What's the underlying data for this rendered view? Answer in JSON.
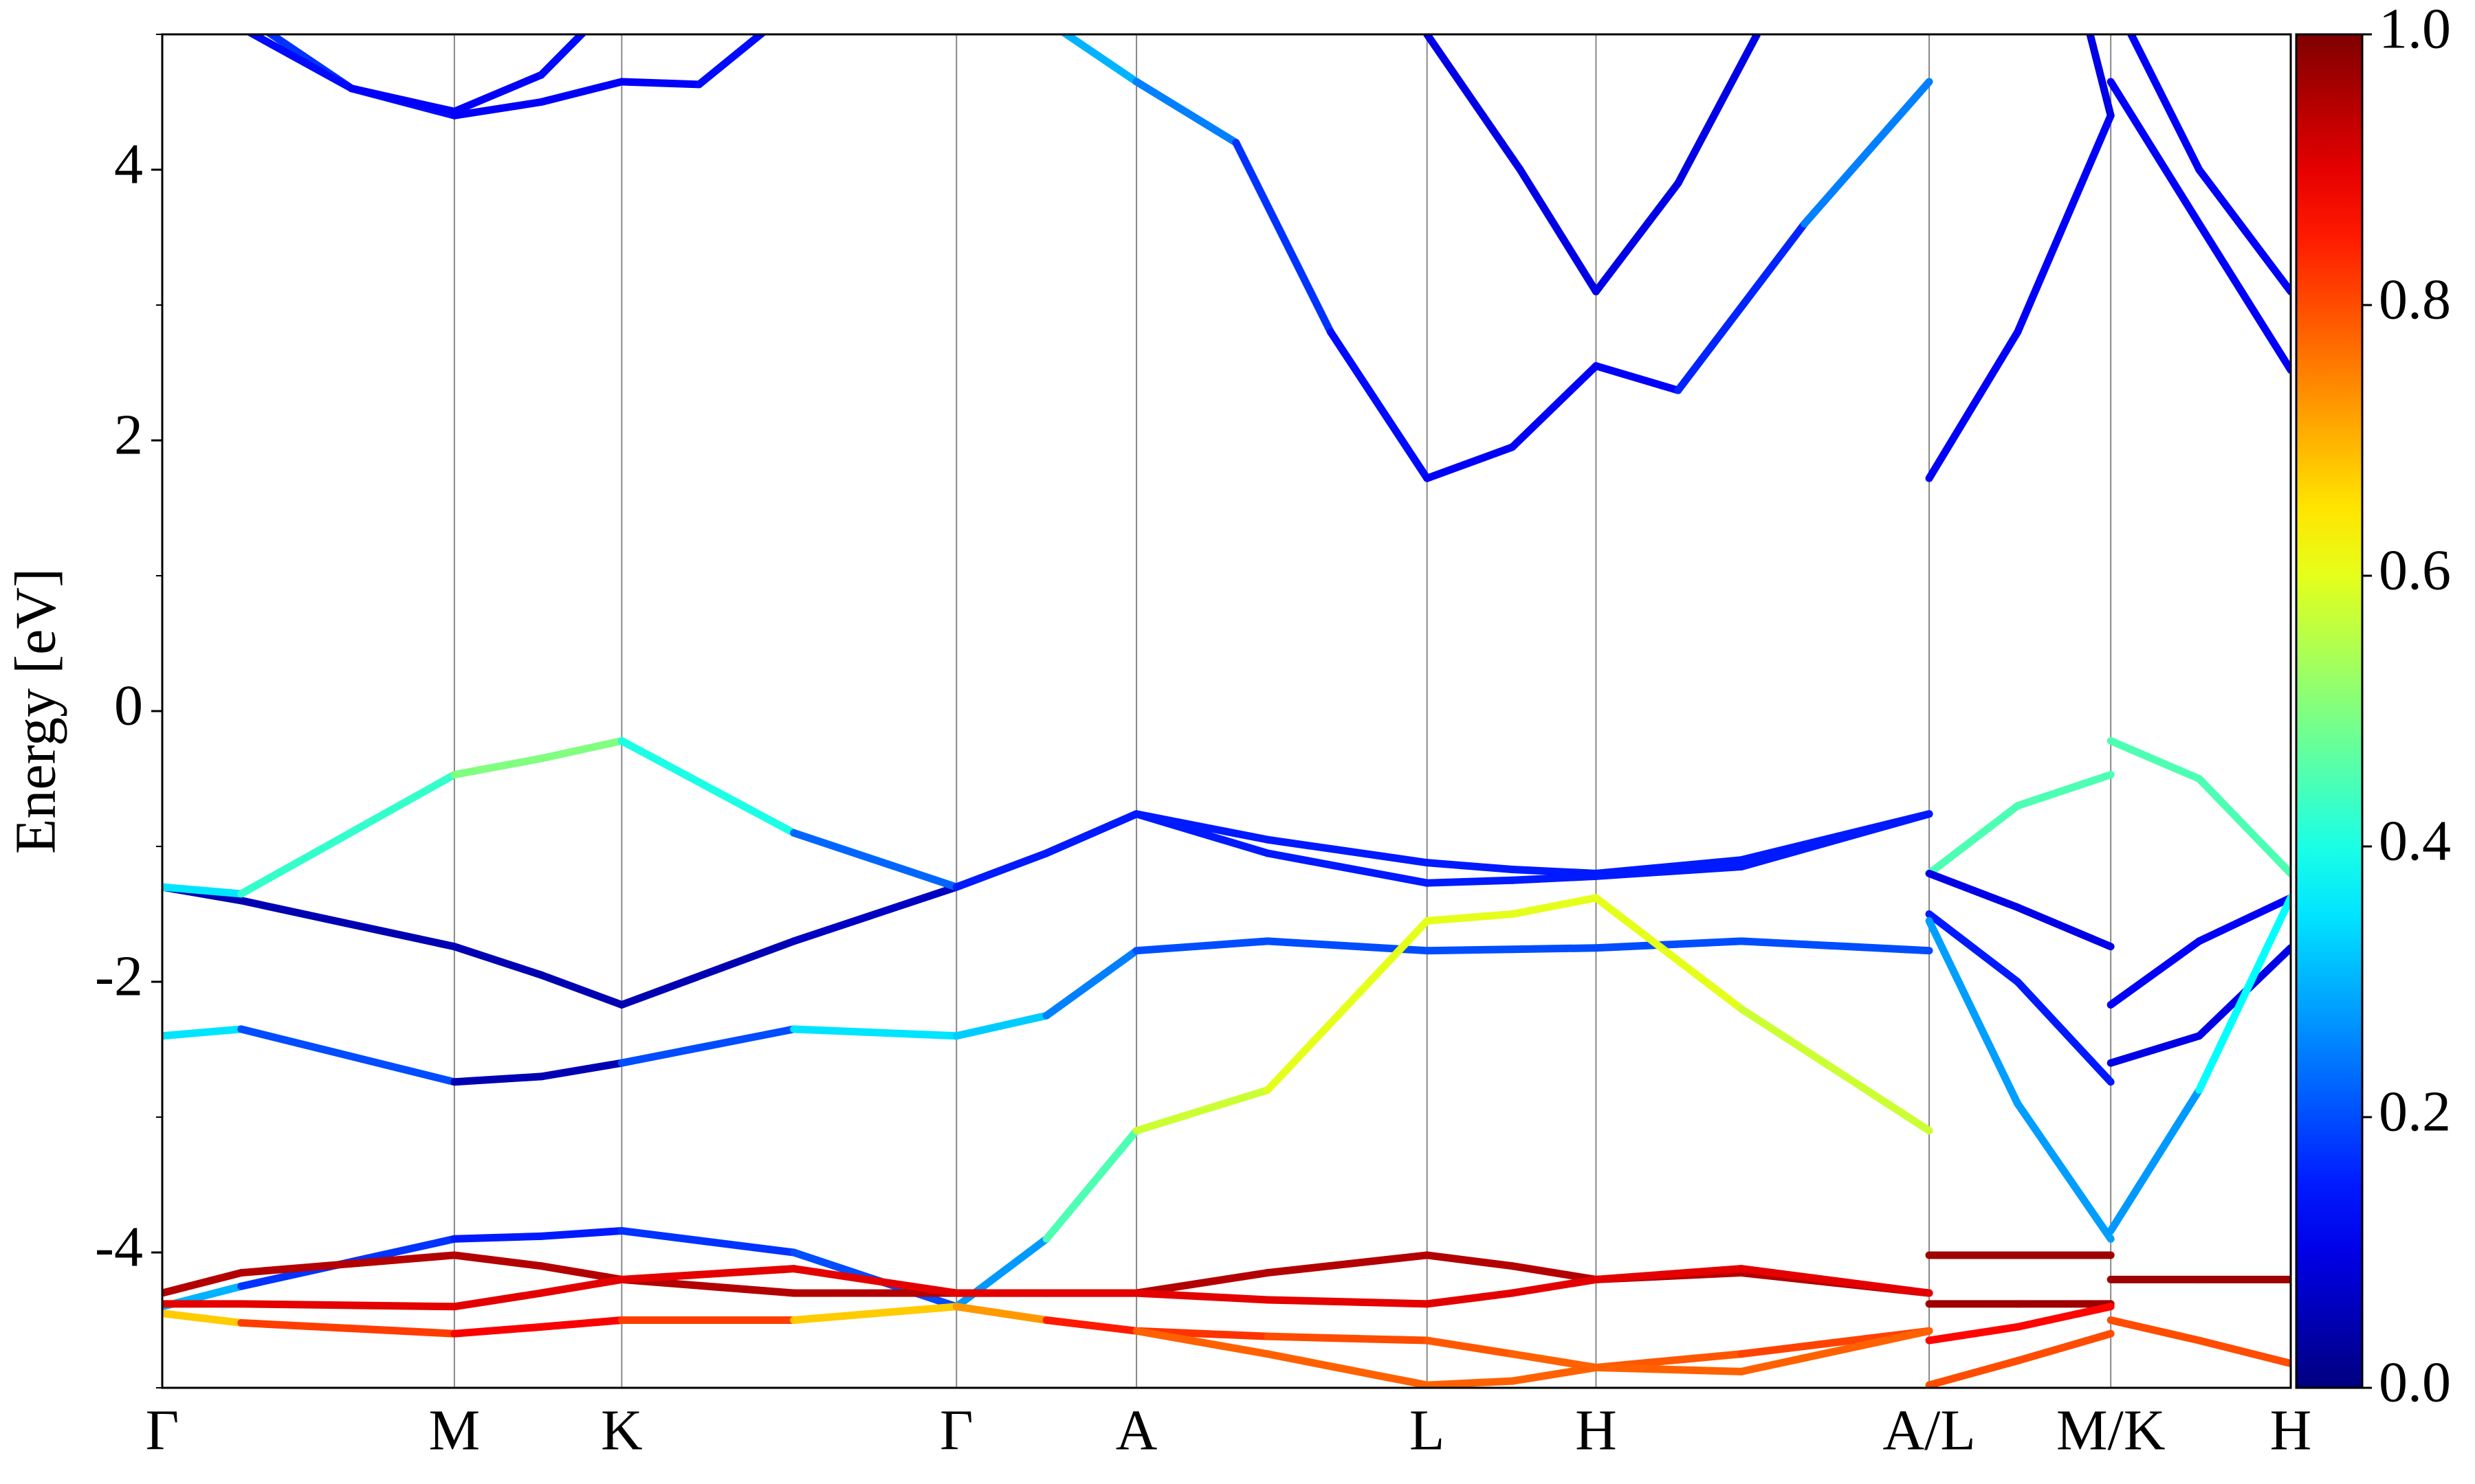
{
  "chart_data": {
    "type": "line",
    "ylabel": "Energy [eV]",
    "xlim": [
      0,
      1348
    ],
    "ylim": [
      -5,
      5
    ],
    "xticks": [
      {
        "value": 0,
        "label": "Γ"
      },
      {
        "value": 185,
        "label": "M"
      },
      {
        "value": 291,
        "label": "K"
      },
      {
        "value": 503,
        "label": "Γ"
      },
      {
        "value": 617,
        "label": "A"
      },
      {
        "value": 801,
        "label": "L"
      },
      {
        "value": 908,
        "label": "H"
      },
      {
        "value": 1119,
        "label": "A/L"
      },
      {
        "value": 1234,
        "label": "M/K"
      },
      {
        "value": 1348,
        "label": "H"
      }
    ],
    "yticks": [
      -4,
      -2,
      0,
      2,
      4
    ],
    "yminorticks": [
      -5,
      -3,
      -1,
      1,
      3,
      5
    ],
    "colorbar": {
      "lim": [
        0,
        1
      ],
      "colormap": "jet",
      "ticks": [
        {
          "value": 0,
          "label": "0.0"
        },
        {
          "value": 0.2,
          "label": "0.2"
        },
        {
          "value": 0.4,
          "label": "0.4"
        },
        {
          "value": 0.6,
          "label": "0.6"
        },
        {
          "value": 0.8,
          "label": "0.8"
        },
        {
          "value": 1,
          "label": "1.0"
        }
      ]
    },
    "series": [
      {
        "x": [
          0,
          50,
          185,
          240,
          291,
          400,
          503,
          560,
          617,
          700,
          801,
          855,
          908,
          1000,
          1119
        ],
        "values": [
          -1.3,
          -1.4,
          -1.74,
          -1.95,
          -2.17,
          -1.7,
          -1.3,
          -1.05,
          -0.76,
          -0.95,
          -1.12,
          -1.17,
          -1.2,
          -1.1,
          -0.76
        ],
        "weights": [
          0.05,
          0.05,
          0.05,
          0.05,
          0.05,
          0.05,
          0.08,
          0.12,
          0.15,
          0.15,
          0.15,
          0.15,
          0.15,
          0.15,
          0.15
        ]
      },
      {
        "x": [
          0,
          50,
          185,
          240,
          291,
          400,
          503,
          560,
          617,
          700,
          801,
          855,
          908,
          1000,
          1119
        ],
        "values": [
          -1.3,
          -1.35,
          -0.47,
          -0.35,
          -0.22,
          -0.9,
          -1.3,
          -1.05,
          -0.76,
          -1.05,
          -1.27,
          -1.25,
          -1.22,
          -1.15,
          -0.76
        ],
        "weights": [
          0.35,
          0.35,
          0.5,
          0.5,
          0.5,
          0.3,
          0.15,
          0.15,
          0.15,
          0.15,
          0.15,
          0.15,
          0.15,
          0.15,
          0.15
        ]
      },
      {
        "x": [
          0,
          50,
          185,
          240,
          291,
          400,
          503,
          560,
          617,
          700,
          801,
          855,
          908,
          1000,
          1119
        ],
        "values": [
          -2.4,
          -2.35,
          -2.74,
          -2.7,
          -2.6,
          -2.35,
          -2.4,
          -2.25,
          -1.77,
          -1.7,
          -1.77,
          -1.76,
          -1.75,
          -1.7,
          -1.77
        ],
        "weights": [
          0.35,
          0.35,
          0.05,
          0.05,
          0.05,
          0.35,
          0.35,
          0.3,
          0.2,
          0.2,
          0.2,
          0.2,
          0.2,
          0.2,
          0.2
        ]
      },
      {
        "x": [
          0,
          50,
          185,
          240,
          291,
          400,
          503,
          560,
          617,
          700,
          801,
          855,
          908,
          1000,
          1119
        ],
        "values": [
          -4.4,
          -4.25,
          -3.9,
          -3.88,
          -3.84,
          -4.0,
          -4.4,
          -3.9,
          -3.1,
          -2.8,
          -1.55,
          -1.5,
          -1.38,
          -2.2,
          -3.1
        ],
        "weights": [
          0.4,
          0.2,
          0.15,
          0.15,
          0.15,
          0.2,
          0.2,
          0.35,
          0.55,
          0.6,
          0.6,
          0.6,
          0.6,
          0.6,
          0.55
        ]
      },
      {
        "x": [
          0,
          50,
          185,
          240,
          291,
          400,
          503,
          560,
          617,
          700,
          801,
          855,
          908,
          1000,
          1119
        ],
        "values": [
          -4.3,
          -4.15,
          -4.02,
          -4.1,
          -4.2,
          -4.3,
          -4.3,
          -4.3,
          -4.3,
          -4.15,
          -4.02,
          -4.1,
          -4.2,
          -4.15,
          -4.3
        ],
        "weights": [
          0.95,
          0.95,
          0.95,
          0.95,
          0.95,
          0.95,
          0.95,
          0.95,
          0.95,
          0.95,
          0.95,
          0.95,
          0.95,
          0.95,
          0.95
        ]
      },
      {
        "x": [
          0,
          50,
          185,
          240,
          291,
          400,
          503,
          560,
          617,
          700,
          801,
          855,
          908,
          1000,
          1119
        ],
        "values": [
          -4.38,
          -4.38,
          -4.4,
          -4.3,
          -4.2,
          -4.12,
          -4.3,
          -4.3,
          -4.3,
          -4.35,
          -4.38,
          -4.3,
          -4.2,
          -4.12,
          -4.3
        ],
        "weights": [
          0.9,
          0.9,
          0.9,
          0.9,
          0.9,
          0.9,
          0.9,
          0.9,
          0.9,
          0.9,
          0.9,
          0.9,
          0.9,
          0.9,
          0.9
        ]
      },
      {
        "x": [
          0,
          50,
          185,
          240,
          291,
          400,
          503,
          560,
          617,
          700,
          801,
          855,
          908,
          1000,
          1119
        ],
        "values": [
          -4.45,
          -4.52,
          -4.6,
          -4.55,
          -4.5,
          -4.5,
          -4.4,
          -4.5,
          -4.58,
          -4.62,
          -4.65,
          -4.75,
          -4.85,
          -4.75,
          -4.58
        ],
        "weights": [
          0.6,
          0.75,
          0.88,
          0.88,
          0.88,
          0.75,
          0.6,
          0.85,
          0.85,
          0.8,
          0.8,
          0.78,
          0.78,
          0.8,
          0.82
        ]
      },
      {
        "x": [
          617,
          700,
          801,
          855,
          908,
          1000,
          1119
        ],
        "values": [
          -4.58,
          -4.75,
          -4.98,
          -4.95,
          -4.85,
          -4.88,
          -4.58
        ],
        "weights": [
          0.78,
          0.78,
          0.78,
          0.78,
          0.78,
          0.78,
          0.78
        ]
      },
      {
        "x": [
          0,
          50,
          120,
          185,
          240,
          291,
          340,
          400
        ],
        "values": [
          5.6,
          5.15,
          4.6,
          4.4,
          4.5,
          4.65,
          4.63,
          5.2
        ],
        "weights": [
          0.25,
          0.2,
          0.15,
          0.12,
          0.12,
          0.12,
          0.12,
          0.15
        ]
      },
      {
        "x": [
          0,
          50,
          120,
          185,
          240,
          291
        ],
        "values": [
          5.5,
          5.05,
          4.6,
          4.43,
          4.7,
          5.3
        ],
        "weights": [
          0.15,
          0.15,
          0.12,
          0.12,
          0.12,
          0.15
        ]
      },
      {
        "x": [
          560,
          617,
          680,
          740,
          801,
          855,
          908,
          960,
          1040,
          1119
        ],
        "values": [
          5.1,
          4.65,
          4.2,
          2.8,
          1.72,
          1.95,
          2.55,
          2.37,
          3.6,
          4.65
        ],
        "weights": [
          0.3,
          0.3,
          0.2,
          0.15,
          0.12,
          0.12,
          0.12,
          0.12,
          0.2,
          0.3
        ]
      },
      {
        "x": [
          801,
          860,
          908,
          960,
          1010
        ],
        "values": [
          5.0,
          4.0,
          3.1,
          3.9,
          5.0
        ],
        "weights": [
          0.1,
          0.1,
          0.1,
          0.1,
          0.1
        ]
      },
      {
        "x": [
          1119,
          1175,
          1234
        ],
        "values": [
          1.72,
          2.8,
          4.4
        ],
        "weights": [
          0.12,
          0.12,
          0.12
        ]
      },
      {
        "x": [
          1119,
          1175,
          1234
        ],
        "values": [
          -1.2,
          -0.7,
          -0.47
        ],
        "weights": [
          0.45,
          0.45,
          0.45
        ]
      },
      {
        "x": [
          1119,
          1175,
          1234
        ],
        "values": [
          -1.2,
          -1.45,
          -1.74
        ],
        "weights": [
          0.1,
          0.1,
          0.1
        ]
      },
      {
        "x": [
          1119,
          1175,
          1234
        ],
        "values": [
          -1.5,
          -2.0,
          -2.74
        ],
        "weights": [
          0.15,
          0.15,
          0.15
        ]
      },
      {
        "x": [
          1119,
          1175,
          1234
        ],
        "values": [
          -1.55,
          -2.9,
          -3.9
        ],
        "weights": [
          0.28,
          0.28,
          0.28
        ]
      },
      {
        "x": [
          1119,
          1175,
          1234
        ],
        "values": [
          -4.02,
          -4.02,
          -4.02
        ],
        "weights": [
          0.97,
          0.97,
          0.97
        ]
      },
      {
        "x": [
          1119,
          1175,
          1234
        ],
        "values": [
          -4.38,
          -4.38,
          -4.38
        ],
        "weights": [
          0.97,
          0.97,
          0.97
        ]
      },
      {
        "x": [
          1119,
          1175,
          1234
        ],
        "values": [
          -4.65,
          -4.55,
          -4.4
        ],
        "weights": [
          0.87,
          0.87,
          0.87
        ]
      },
      {
        "x": [
          1119,
          1175,
          1234
        ],
        "values": [
          -4.98,
          -4.8,
          -4.6
        ],
        "weights": [
          0.8,
          0.8,
          0.8
        ]
      },
      {
        "x": [
          1210,
          1234
        ],
        "values": [
          5.5,
          4.4
        ],
        "weights": [
          0.1,
          0.1
        ]
      },
      {
        "x": [
          1234,
          1290,
          1348
        ],
        "values": [
          4.65,
          3.6,
          2.52
        ],
        "weights": [
          0.12,
          0.12,
          0.12
        ]
      },
      {
        "x": [
          1234,
          1290,
          1348
        ],
        "values": [
          5.3,
          4.0,
          3.1
        ],
        "weights": [
          0.12,
          0.12,
          0.12
        ]
      },
      {
        "x": [
          1234,
          1290,
          1348
        ],
        "values": [
          -0.22,
          -0.5,
          -1.2
        ],
        "weights": [
          0.45,
          0.45,
          0.45
        ]
      },
      {
        "x": [
          1234,
          1290,
          1348
        ],
        "values": [
          -2.17,
          -1.7,
          -1.38
        ],
        "weights": [
          0.12,
          0.12,
          0.12
        ]
      },
      {
        "x": [
          1234,
          1290,
          1348
        ],
        "values": [
          -2.6,
          -2.4,
          -1.75
        ],
        "weights": [
          0.1,
          0.1,
          0.1
        ]
      },
      {
        "x": [
          1234,
          1290,
          1348
        ],
        "values": [
          -3.84,
          -2.8,
          -1.38
        ],
        "weights": [
          0.25,
          0.3,
          0.45
        ]
      },
      {
        "x": [
          1234,
          1290,
          1348
        ],
        "values": [
          -4.2,
          -4.2,
          -4.2
        ],
        "weights": [
          0.97,
          0.97,
          0.97
        ]
      },
      {
        "x": [
          1234,
          1290,
          1348
        ],
        "values": [
          -4.5,
          -4.65,
          -4.82
        ],
        "weights": [
          0.8,
          0.8,
          0.8
        ]
      }
    ]
  }
}
